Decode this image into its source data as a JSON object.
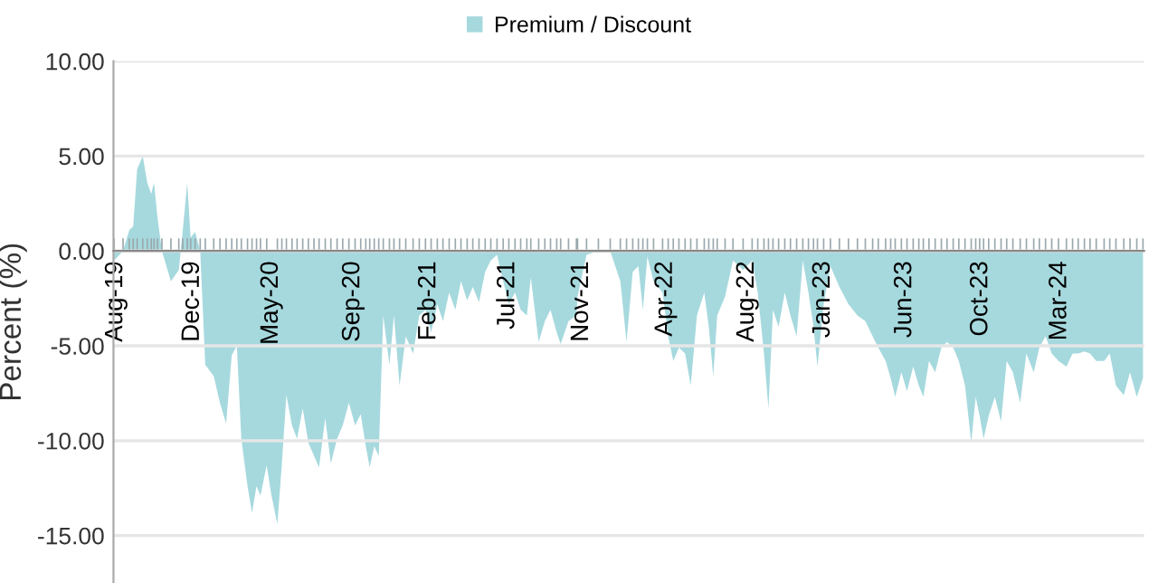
{
  "chart_data": {
    "type": "area",
    "ylabel": "Percent (%)",
    "legend": "top",
    "grid": "y",
    "ylim": [
      -17.5,
      10
    ],
    "yticks": [
      {
        "value": -15,
        "label": "-15.00"
      },
      {
        "value": -10,
        "label": "-10.00"
      },
      {
        "value": -5,
        "label": "-5.00"
      },
      {
        "value": 0,
        "label": "0.00"
      },
      {
        "value": 5,
        "label": "5.00"
      },
      {
        "value": 10,
        "label": "10.00"
      }
    ],
    "xlim": [
      "2019-08-02",
      "2024-08-05"
    ],
    "xticks": [
      {
        "value": "2019-08-06",
        "label": "Aug-19"
      },
      {
        "value": "2019-12-20",
        "label": "Dec-19"
      },
      {
        "value": "2020-05-08",
        "label": "May-20"
      },
      {
        "value": "2020-09-30",
        "label": "Sep-20"
      },
      {
        "value": "2021-02-12",
        "label": "Feb-21"
      },
      {
        "value": "2021-07-02",
        "label": "Jul-21"
      },
      {
        "value": "2021-11-10",
        "label": "Nov-21"
      },
      {
        "value": "2022-04-08",
        "label": "Apr-22"
      },
      {
        "value": "2022-08-31",
        "label": "Aug-22"
      },
      {
        "value": "2023-01-13",
        "label": "Jan-23"
      },
      {
        "value": "2023-06-07",
        "label": "Jun-23"
      },
      {
        "value": "2023-10-20",
        "label": "Oct-23"
      },
      {
        "value": "2024-03-08",
        "label": "Mar-24"
      }
    ],
    "series": [
      {
        "name": "Premium / Discount",
        "color": "#a6d9de",
        "x": [
          "2019-08-03",
          "2019-08-19",
          "2019-08-30",
          "2019-09-06",
          "2019-09-13",
          "2019-09-23",
          "2019-10-01",
          "2019-10-08",
          "2019-10-13",
          "2019-10-19",
          "2019-10-27",
          "2019-11-12",
          "2019-11-26",
          "2019-12-03",
          "2019-12-11",
          "2019-12-17",
          "2019-12-25",
          "2020-01-03",
          "2020-01-12",
          "2020-01-27",
          "2020-02-07",
          "2020-02-18",
          "2020-02-28",
          "2020-03-08",
          "2020-03-16",
          "2020-03-27",
          "2020-04-04",
          "2020-04-12",
          "2020-04-19",
          "2020-04-30",
          "2020-05-08",
          "2020-05-19",
          "2020-05-27",
          "2020-06-04",
          "2020-06-14",
          "2020-06-23",
          "2020-07-03",
          "2020-07-13",
          "2020-07-23",
          "2020-08-01",
          "2020-08-12",
          "2020-08-22",
          "2020-09-02",
          "2020-09-12",
          "2020-09-23",
          "2020-10-04",
          "2020-10-14",
          "2020-10-23",
          "2020-10-30",
          "2020-11-07",
          "2020-11-15",
          "2020-11-23",
          "2020-12-04",
          "2020-12-12",
          "2020-12-22",
          "2021-01-02",
          "2021-01-15",
          "2021-01-26",
          "2021-02-06",
          "2021-02-16",
          "2021-02-27",
          "2021-03-09",
          "2021-03-20",
          "2021-03-31",
          "2021-04-10",
          "2021-04-21",
          "2021-05-01",
          "2021-05-12",
          "2021-05-23",
          "2021-06-02",
          "2021-06-13",
          "2021-06-24",
          "2021-07-04",
          "2021-07-15",
          "2021-07-25",
          "2021-08-05",
          "2021-08-12",
          "2021-08-26",
          "2021-09-06",
          "2021-09-16",
          "2021-09-27",
          "2021-10-04",
          "2021-10-18",
          "2021-11-01",
          "2021-11-03",
          "2021-11-19",
          "2021-12-10",
          "2021-12-31",
          "2022-01-18",
          "2022-01-29",
          "2022-02-09",
          "2022-02-19",
          "2022-02-27",
          "2022-03-07",
          "2022-03-18",
          "2022-04-03",
          "2022-04-13",
          "2022-04-22",
          "2022-05-02",
          "2022-05-13",
          "2022-05-23",
          "2022-06-03",
          "2022-06-16",
          "2022-06-24",
          "2022-07-02",
          "2022-07-09",
          "2022-07-23",
          "2022-08-06",
          "2022-08-24",
          "2022-09-09",
          "2022-09-19",
          "2022-09-30",
          "2022-10-08",
          "2022-10-16",
          "2022-10-26",
          "2022-11-06",
          "2022-11-16",
          "2022-11-27",
          "2022-12-08",
          "2022-12-18",
          "2022-12-27",
          "2023-01-03",
          "2023-01-14",
          "2023-01-26",
          "2023-02-11",
          "2023-02-27",
          "2023-03-15",
          "2023-03-29",
          "2023-04-11",
          "2023-04-21",
          "2023-05-04",
          "2023-05-13",
          "2023-05-21",
          "2023-06-01",
          "2023-06-11",
          "2023-06-22",
          "2023-07-02",
          "2023-07-10",
          "2023-07-20",
          "2023-07-31",
          "2023-08-11",
          "2023-08-21",
          "2023-09-01",
          "2023-09-11",
          "2023-09-22",
          "2023-10-03",
          "2023-10-11",
          "2023-10-18",
          "2023-10-25",
          "2023-11-03",
          "2023-11-14",
          "2023-11-25",
          "2023-12-05",
          "2023-12-16",
          "2023-12-29",
          "2024-01-09",
          "2024-01-22",
          "2024-02-01",
          "2024-02-12",
          "2024-02-23",
          "2024-03-06",
          "2024-03-20",
          "2024-03-31",
          "2024-04-10",
          "2024-04-21",
          "2024-05-01",
          "2024-05-12",
          "2024-05-26",
          "2024-06-05",
          "2024-06-16",
          "2024-06-30",
          "2024-07-11",
          "2024-07-23",
          "2024-08-03"
        ],
        "values": [
          -0.5,
          0,
          1.1,
          1.3,
          4.3,
          5.0,
          3.6,
          3.0,
          3.6,
          1.8,
          0,
          -1.6,
          -1.0,
          1.1,
          3.6,
          0.7,
          1.0,
          0,
          -6.0,
          -6.6,
          -8.0,
          -9.1,
          -5.5,
          -5.0,
          -9.9,
          -12.4,
          -13.8,
          -12.4,
          -12.9,
          -11.3,
          -12.8,
          -14.4,
          -11.2,
          -7.6,
          -9.2,
          -9.9,
          -8.3,
          -10.1,
          -10.8,
          -11.4,
          -8.8,
          -11.2,
          -9.9,
          -9.2,
          -8.0,
          -9.2,
          -8.6,
          -10.3,
          -11.4,
          -10.3,
          -10.8,
          -3.4,
          -6.0,
          -3.4,
          -7.1,
          -4.5,
          -5.4,
          -3.4,
          -3.1,
          -4.3,
          -2.8,
          -3.7,
          -2.2,
          -3.1,
          -1.6,
          -2.6,
          -1.9,
          -2.7,
          -1.1,
          -0.5,
          -0.2,
          -1.6,
          -2.8,
          -2.2,
          -3.1,
          -3.4,
          -1.4,
          -4.8,
          -3.7,
          -3.1,
          -4.3,
          -4.9,
          -3.7,
          -3.4,
          -2.4,
          -0.2,
          0,
          0,
          -1.6,
          -4.8,
          -1.1,
          -0.8,
          -3.1,
          -0.3,
          -1.6,
          -2.2,
          -4.5,
          -5.8,
          -5.1,
          -5.4,
          -7.1,
          -3.4,
          -2.2,
          -4.0,
          -6.6,
          -3.4,
          -2.4,
          -0.5,
          -1.0,
          -0.5,
          -2.2,
          -5.4,
          -8.3,
          -3.1,
          -4.0,
          -2.2,
          -3.4,
          -4.5,
          -0.5,
          -2.2,
          -4.0,
          -6.1,
          -2.8,
          -0.8,
          -1.9,
          -2.8,
          -3.4,
          -3.7,
          -4.5,
          -5.1,
          -5.8,
          -6.7,
          -7.7,
          -6.4,
          -7.4,
          -6.1,
          -7.1,
          -7.7,
          -5.8,
          -6.4,
          -5.1,
          -4.8,
          -5.1,
          -5.8,
          -7.1,
          -10.1,
          -7.7,
          -8.7,
          -9.9,
          -8.7,
          -7.7,
          -9.0,
          -5.8,
          -6.4,
          -8.0,
          -5.4,
          -6.4,
          -5.1,
          -4.5,
          -5.4,
          -5.8,
          -6.1,
          -5.4,
          -5.4,
          -5.3,
          -5.4,
          -5.8,
          -5.8,
          -5.4,
          -7.1,
          -7.6,
          -6.4,
          -7.7,
          -6.7
        ]
      }
    ]
  }
}
